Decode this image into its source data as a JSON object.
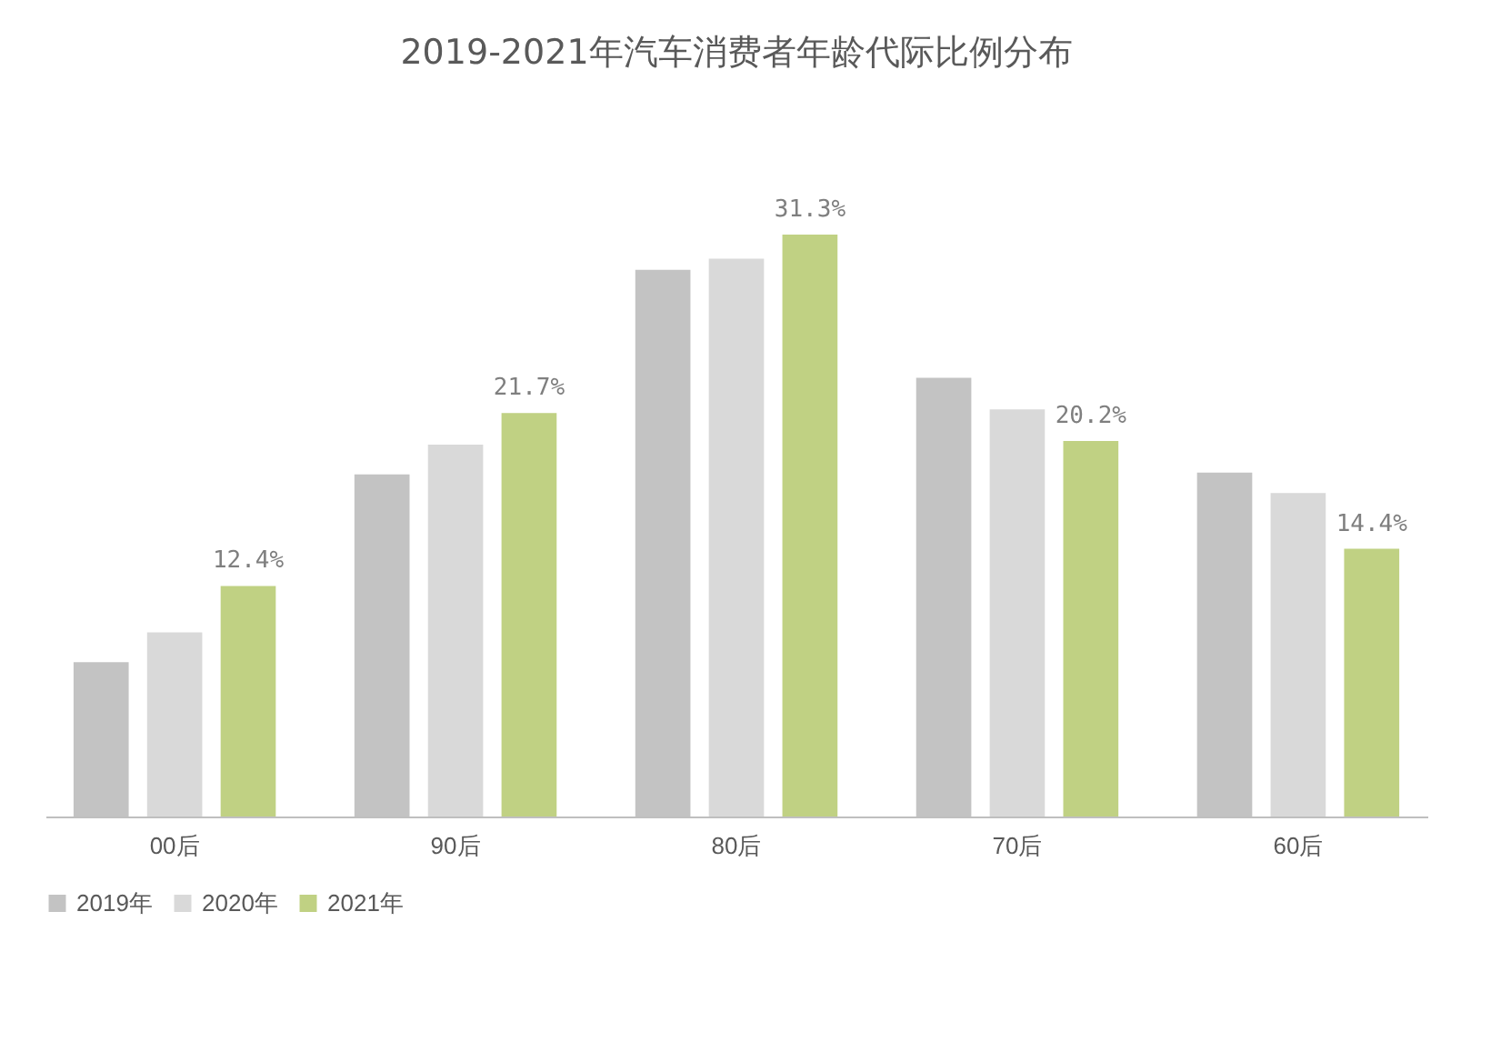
{
  "chart_data": {
    "type": "bar",
    "title": "2019-2021年汽车消费者年龄代际比例分布",
    "categories": [
      "00后",
      "90后",
      "80后",
      "70后",
      "60后"
    ],
    "series": [
      {
        "name": "2019年",
        "color": "#c3c3c3",
        "values": [
          8.3,
          18.4,
          29.4,
          23.6,
          18.5
        ]
      },
      {
        "name": "2020年",
        "color": "#d9d9d9",
        "values": [
          9.9,
          20.0,
          30.0,
          21.9,
          17.4
        ]
      },
      {
        "name": "2021年",
        "color": "#c0d183",
        "values": [
          12.4,
          21.7,
          31.3,
          20.2,
          14.4
        ],
        "value_labels": [
          "12.4%",
          "21.7%",
          "31.3%",
          "20.2%",
          "14.4%"
        ]
      }
    ],
    "legend": "bottom",
    "grid": false
  }
}
